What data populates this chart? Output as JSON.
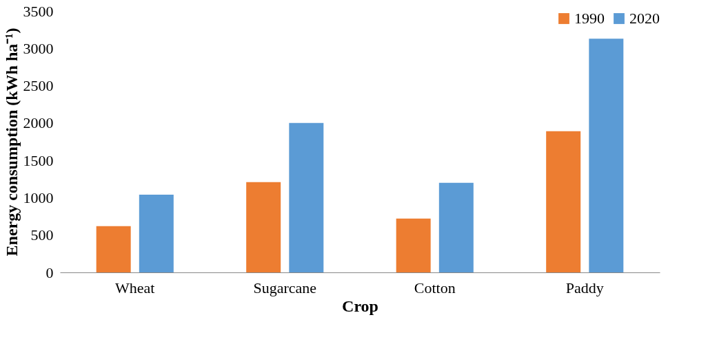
{
  "chart_data": {
    "type": "bar",
    "xlabel": "Crop",
    "ylabel": "Energy consumption (kWh ha⁻¹)",
    "categories": [
      "Wheat",
      "Sugarcane",
      "Cotton",
      "Paddy"
    ],
    "series": [
      {
        "name": "1990",
        "color": "#ed7d31",
        "values": [
          620,
          1210,
          720,
          1890
        ]
      },
      {
        "name": "2020",
        "color": "#5b9bd5",
        "values": [
          1040,
          2000,
          1200,
          3130
        ]
      }
    ],
    "ylim": [
      0,
      3500
    ],
    "yticks": [
      0,
      500,
      1000,
      1500,
      2000,
      2500,
      3000,
      3500
    ],
    "grid": false,
    "legend": "top right"
  }
}
